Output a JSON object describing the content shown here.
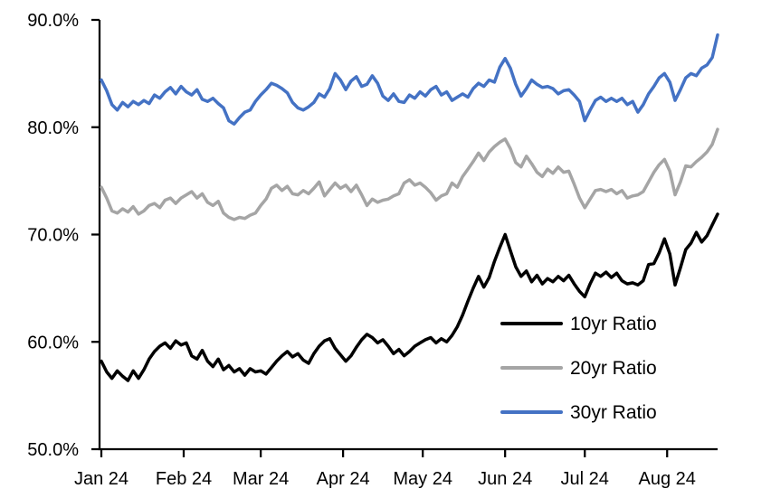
{
  "chart_data": {
    "type": "line",
    "title": "",
    "grid": false,
    "x_axis": {
      "tick_labels": [
        "Jan 24",
        "Feb 24",
        "Mar 24",
        "Apr 24",
        "May 24",
        "Jun 24",
        "Jul 24",
        "Aug 24"
      ],
      "tick_day_offsets": [
        0,
        31,
        60,
        91,
        121,
        152,
        182,
        213
      ],
      "domain_days": [
        0,
        232
      ],
      "sample_step_days": 2
    },
    "y_axis": {
      "unit": "%",
      "min": 50,
      "max": 90,
      "tick_values": [
        90,
        80,
        70,
        60,
        50
      ],
      "tick_labels": [
        "90.0%",
        "80.0%",
        "70.0%",
        "60.0%",
        "50.0%"
      ]
    },
    "legend": {
      "position": "inside-lower-right",
      "entries": [
        "10yr Ratio",
        "20yr Ratio",
        "30yr Ratio"
      ]
    },
    "series": [
      {
        "name": "10yr Ratio",
        "color": "#000000",
        "values": [
          58.2,
          57.2,
          56.6,
          57.3,
          56.8,
          56.4,
          57.3,
          56.6,
          57.4,
          58.4,
          59.1,
          59.6,
          59.9,
          59.4,
          60.1,
          59.7,
          59.9,
          58.7,
          58.4,
          59.2,
          58.2,
          57.7,
          58.4,
          57.4,
          57.8,
          57.2,
          57.5,
          56.9,
          57.5,
          57.2,
          57.3,
          57.0,
          57.6,
          58.2,
          58.7,
          59.1,
          58.6,
          58.9,
          58.3,
          58.0,
          58.9,
          59.6,
          60.1,
          60.3,
          59.4,
          58.8,
          58.2,
          58.7,
          59.5,
          60.2,
          60.7,
          60.4,
          59.9,
          60.2,
          59.6,
          58.9,
          59.3,
          58.7,
          59.1,
          59.6,
          59.9,
          60.2,
          60.4,
          59.9,
          60.3,
          60.0,
          60.6,
          61.4,
          62.5,
          63.8,
          65.0,
          66.1,
          65.1,
          66.0,
          67.5,
          68.8,
          70.0,
          68.5,
          67.0,
          66.1,
          66.6,
          65.6,
          66.2,
          65.4,
          65.9,
          65.6,
          66.1,
          65.7,
          66.2,
          65.4,
          64.7,
          64.2,
          65.4,
          66.4,
          66.1,
          66.5,
          66.0,
          66.4,
          65.7,
          65.4,
          65.5,
          65.3,
          65.7,
          67.2,
          67.3,
          68.3,
          69.6,
          68.2,
          65.3,
          66.9,
          68.6,
          69.2,
          70.2,
          69.3,
          69.9,
          70.9,
          71.9
        ]
      },
      {
        "name": "20yr Ratio",
        "color": "#A5A5A5",
        "values": [
          74.4,
          73.4,
          72.2,
          72.0,
          72.4,
          72.1,
          72.6,
          71.9,
          72.2,
          72.7,
          72.9,
          72.5,
          73.2,
          73.4,
          72.9,
          73.4,
          73.7,
          74.0,
          73.4,
          73.8,
          73.0,
          72.7,
          73.1,
          72.0,
          71.6,
          71.4,
          71.6,
          71.5,
          71.8,
          72.0,
          72.7,
          73.3,
          74.3,
          74.6,
          74.1,
          74.5,
          73.8,
          73.7,
          74.1,
          73.8,
          74.3,
          74.9,
          73.6,
          74.2,
          74.8,
          74.3,
          74.6,
          74.0,
          74.6,
          73.7,
          72.7,
          73.3,
          73.0,
          73.2,
          73.3,
          73.6,
          73.8,
          74.8,
          75.1,
          74.6,
          74.8,
          74.4,
          73.9,
          73.2,
          73.6,
          73.8,
          74.8,
          74.4,
          75.4,
          76.1,
          76.8,
          77.6,
          76.9,
          77.7,
          78.2,
          78.6,
          78.9,
          78.0,
          76.7,
          76.3,
          77.3,
          76.6,
          75.8,
          75.4,
          76.1,
          75.7,
          76.3,
          75.8,
          75.9,
          74.7,
          73.4,
          72.5,
          73.3,
          74.1,
          74.2,
          74.0,
          74.2,
          73.8,
          74.1,
          73.4,
          73.6,
          73.7,
          74.0,
          74.9,
          75.8,
          76.5,
          77.0,
          75.9,
          73.7,
          74.9,
          76.4,
          76.3,
          76.8,
          77.2,
          77.7,
          78.4,
          79.8
        ]
      },
      {
        "name": "30yr Ratio",
        "color": "#4472C4",
        "values": [
          84.4,
          83.4,
          82.1,
          81.6,
          82.3,
          81.9,
          82.4,
          82.1,
          82.5,
          82.2,
          83.0,
          82.7,
          83.3,
          83.7,
          83.1,
          83.8,
          83.3,
          83.0,
          83.5,
          82.6,
          82.4,
          82.7,
          82.2,
          81.8,
          80.6,
          80.3,
          80.9,
          81.4,
          81.6,
          82.4,
          83.0,
          83.5,
          84.1,
          83.9,
          83.6,
          83.2,
          82.3,
          81.8,
          81.6,
          81.9,
          82.3,
          83.1,
          82.8,
          83.6,
          85.0,
          84.4,
          83.5,
          84.3,
          84.7,
          83.8,
          84.0,
          84.8,
          84.1,
          82.9,
          82.5,
          83.1,
          82.4,
          82.3,
          83.0,
          82.7,
          83.3,
          82.9,
          83.5,
          83.8,
          83.0,
          83.3,
          82.5,
          82.8,
          83.1,
          82.8,
          83.6,
          84.1,
          83.8,
          84.4,
          84.2,
          85.6,
          86.4,
          85.5,
          84.0,
          82.9,
          83.6,
          84.4,
          84.0,
          83.7,
          83.8,
          83.6,
          83.1,
          83.4,
          83.5,
          83.0,
          82.4,
          80.6,
          81.6,
          82.5,
          82.8,
          82.4,
          82.7,
          82.4,
          82.7,
          82.1,
          82.4,
          81.4,
          82.1,
          83.1,
          83.8,
          84.6,
          85.0,
          84.2,
          82.5,
          83.5,
          84.6,
          85.0,
          84.8,
          85.5,
          85.8,
          86.5,
          88.6
        ]
      }
    ]
  }
}
